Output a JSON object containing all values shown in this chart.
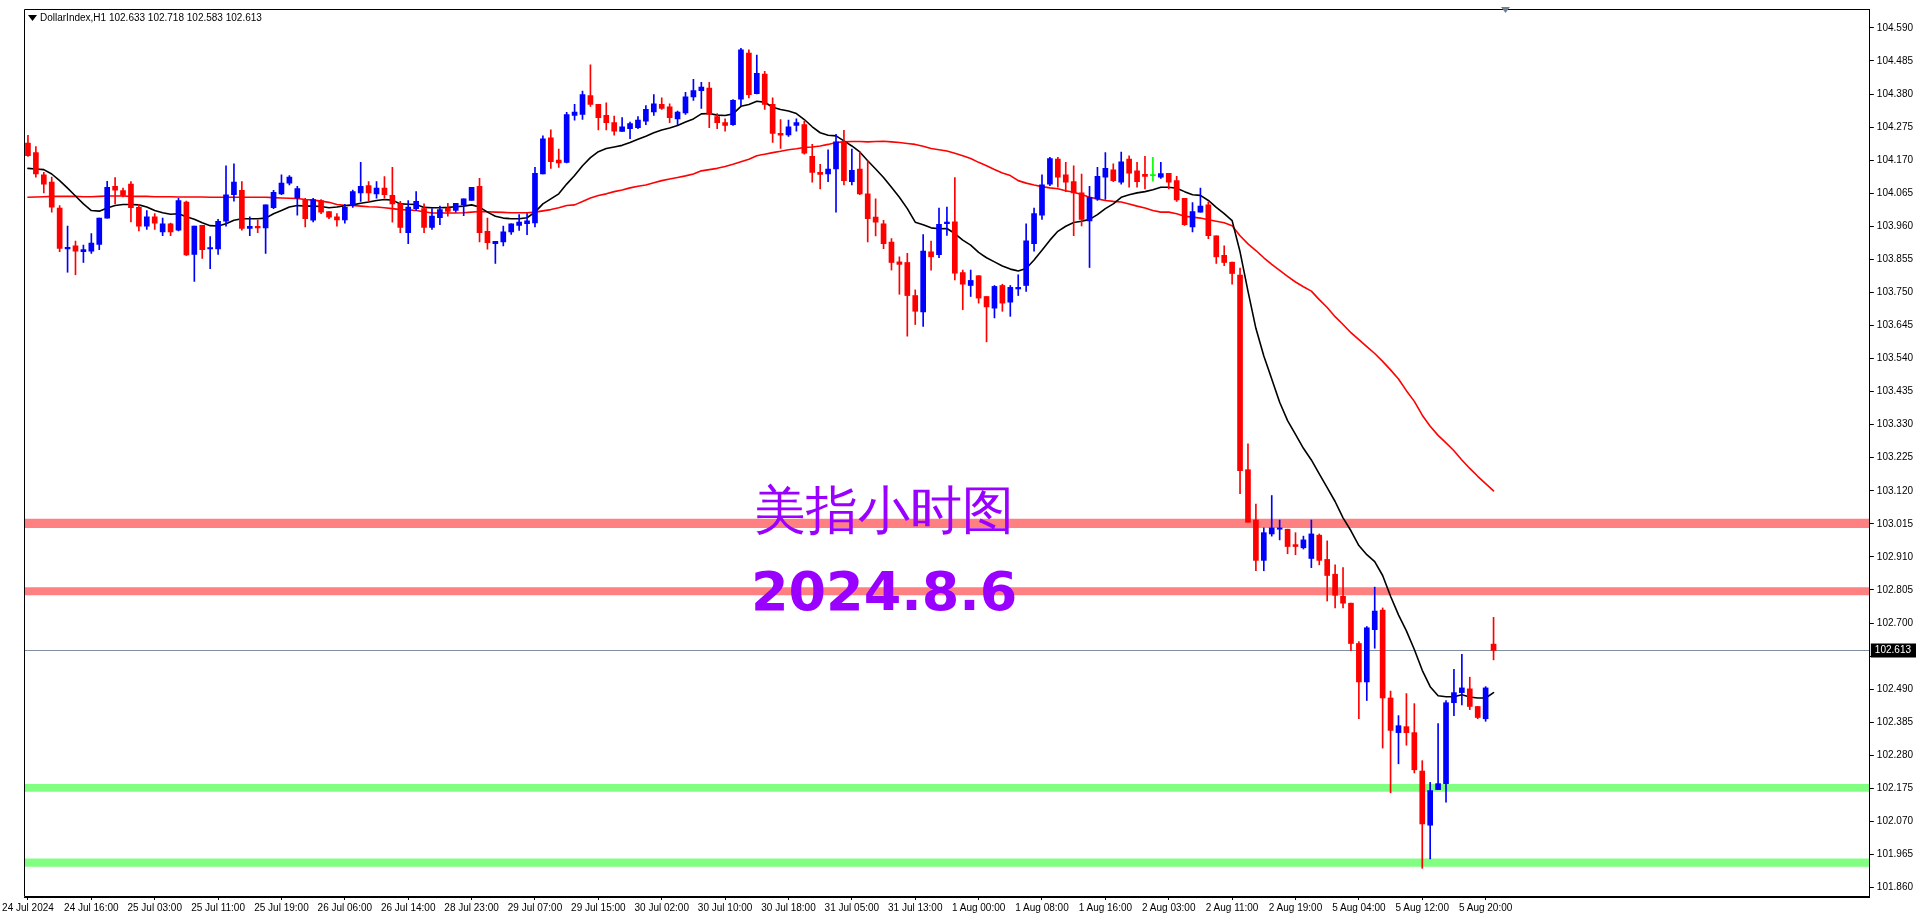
{
  "chart_data": {
    "type": "candlestick",
    "title": "DollarIndex,H1 102.633 102.718 102.583 102.613",
    "annotations": [
      "美指小时图",
      "2024.8.6"
    ],
    "categories": [
      "24 Jul 2024",
      null,
      null,
      null,
      null,
      null,
      null,
      null,
      "24 Jul 16:00",
      null,
      null,
      null,
      null,
      null,
      null,
      null,
      "25 Jul 03:00",
      null,
      null,
      null,
      null,
      null,
      null,
      null,
      "25 Jul 11:00",
      null,
      null,
      null,
      null,
      null,
      null,
      null,
      "25 Jul 19:00",
      null,
      null,
      null,
      null,
      null,
      null,
      null,
      "26 Jul 06:00",
      null,
      null,
      null,
      null,
      null,
      null,
      null,
      "26 Jul 14:00",
      null,
      null,
      null,
      null,
      null,
      null,
      null,
      "28 Jul 23:00",
      null,
      null,
      null,
      null,
      null,
      null,
      null,
      "29 Jul 07:00",
      null,
      null,
      null,
      null,
      null,
      null,
      null,
      "29 Jul 15:00",
      null,
      null,
      null,
      null,
      null,
      null,
      null,
      "30 Jul 02:00",
      null,
      null,
      null,
      null,
      null,
      null,
      null,
      "30 Jul 10:00",
      null,
      null,
      null,
      null,
      null,
      null,
      null,
      "30 Jul 18:00",
      null,
      null,
      null,
      null,
      null,
      null,
      null,
      "31 Jul 05:00",
      null,
      null,
      null,
      null,
      null,
      null,
      null,
      "31 Jul 13:00",
      null,
      null,
      null,
      null,
      null,
      null,
      null,
      "1 Aug 00:00",
      null,
      null,
      null,
      null,
      null,
      null,
      null,
      "1 Aug 08:00",
      null,
      null,
      null,
      null,
      null,
      null,
      null,
      "1 Aug 16:00",
      null,
      null,
      null,
      null,
      null,
      null,
      null,
      "2 Aug 03:00",
      null,
      null,
      null,
      null,
      null,
      null,
      null,
      "2 Aug 11:00",
      null,
      null,
      null,
      null,
      null,
      null,
      null,
      "2 Aug 19:00",
      null,
      null,
      null,
      null,
      null,
      null,
      null,
      "5 Aug 04:00",
      null,
      null,
      null,
      null,
      null,
      null,
      null,
      "5 Aug 12:00",
      null,
      null,
      null,
      null,
      null,
      null,
      null,
      "5 Aug 20:00",
      null,
      null,
      null,
      null,
      null,
      null,
      null,
      null,
      null,
      null,
      null,
      null,
      null,
      null,
      null,
      null,
      null,
      null,
      null,
      null,
      null,
      null,
      null,
      null,
      null,
      null,
      null,
      null,
      null,
      null,
      null,
      null,
      null,
      null,
      null,
      null,
      null,
      null,
      null,
      null,
      null,
      null,
      null,
      null,
      null,
      null,
      null,
      null
    ],
    "ohlc": [
      [
        104.224,
        104.249,
        104.182,
        104.184
      ],
      [
        104.194,
        104.213,
        104.116,
        104.126
      ],
      [
        104.123,
        104.131,
        104.066,
        104.094
      ],
      [
        104.1,
        104.116,
        104.005,
        104.021
      ],
      [
        104.018,
        104.026,
        103.879,
        103.89
      ],
      [
        103.888,
        103.961,
        103.814,
        103.893
      ],
      [
        103.898,
        103.913,
        103.806,
        103.881
      ],
      [
        103.879,
        103.9,
        103.845,
        103.886
      ],
      [
        103.881,
        103.937,
        103.874,
        103.907
      ],
      [
        103.902,
        103.986,
        103.886,
        103.986
      ],
      [
        103.986,
        104.103,
        103.986,
        104.084
      ],
      [
        104.087,
        104.115,
        104.031,
        104.075
      ],
      [
        104.073,
        104.081,
        104.053,
        104.058
      ],
      [
        104.094,
        104.102,
        103.974,
        104.019
      ],
      [
        104.02,
        104.03,
        103.945,
        103.96
      ],
      [
        103.96,
        104.01,
        103.95,
        103.99
      ],
      [
        103.99,
        104.0,
        103.95,
        103.97
      ],
      [
        103.942,
        103.986,
        103.93,
        103.968
      ],
      [
        103.968,
        103.97,
        103.93,
        103.942
      ],
      [
        103.948,
        104.049,
        103.945,
        104.042
      ],
      [
        104.037,
        104.04,
        103.867,
        103.869
      ],
      [
        103.871,
        103.961,
        103.785,
        103.961
      ],
      [
        103.963,
        103.963,
        103.858,
        103.886
      ],
      [
        103.888,
        103.927,
        103.825,
        103.892
      ],
      [
        103.888,
        103.982,
        103.871,
        103.976
      ],
      [
        103.976,
        104.152,
        103.96,
        104.06
      ],
      [
        104.06,
        104.158,
        104.04,
        104.1
      ],
      [
        104.074,
        104.102,
        103.948,
        103.953
      ],
      [
        103.953,
        103.99,
        103.93,
        103.96
      ],
      [
        103.96,
        103.98,
        103.94,
        103.955
      ],
      [
        103.955,
        104.028,
        103.874,
        104.028
      ],
      [
        104.019,
        104.074,
        104.016,
        104.068
      ],
      [
        104.063,
        104.123,
        104.06,
        104.097
      ],
      [
        104.097,
        104.121,
        104.091,
        104.116
      ],
      [
        104.05,
        104.087,
        103.995,
        104.08
      ],
      [
        104.045,
        104.049,
        103.958,
        103.984
      ],
      [
        103.979,
        104.049,
        103.974,
        104.045
      ],
      [
        104.042,
        104.045,
        104.0,
        104.005
      ],
      [
        104.007,
        104.007,
        103.984,
        103.989
      ],
      [
        103.99,
        104.0,
        103.96,
        103.98
      ],
      [
        103.98,
        104.03,
        103.97,
        104.02
      ],
      [
        104.026,
        104.075,
        104.02,
        104.07
      ],
      [
        104.066,
        104.163,
        104.039,
        104.087
      ],
      [
        104.089,
        104.102,
        104.039,
        104.066
      ],
      [
        104.063,
        104.102,
        104.049,
        104.081
      ],
      [
        104.081,
        104.118,
        104.049,
        104.06
      ],
      [
        104.058,
        104.147,
        103.973,
        104.031
      ],
      [
        104.031,
        104.039,
        103.94,
        103.956
      ],
      [
        103.94,
        104.042,
        103.905,
        104.021
      ],
      [
        104.016,
        104.07,
        104.01,
        104.039
      ],
      [
        104.016,
        104.031,
        103.94,
        103.956
      ],
      [
        103.956,
        104.016,
        103.95,
        103.992
      ],
      [
        103.987,
        104.024,
        103.965,
        104.013
      ],
      [
        104.018,
        104.033,
        103.992,
        104.007
      ],
      [
        104.01,
        104.033,
        104.005,
        104.033
      ],
      [
        104.028,
        104.047,
        103.994,
        104.047
      ],
      [
        104.042,
        104.084,
        104.042,
        104.084
      ],
      [
        104.087,
        104.112,
        103.91,
        103.94
      ],
      [
        103.944,
        103.986,
        103.887,
        103.908
      ],
      [
        103.905,
        103.912,
        103.842,
        103.912
      ],
      [
        103.91,
        103.961,
        103.898,
        103.942
      ],
      [
        103.942,
        103.968,
        103.934,
        103.968
      ],
      [
        103.963,
        103.997,
        103.947,
        103.973
      ],
      [
        103.968,
        104.0,
        103.933,
        103.977
      ],
      [
        103.971,
        104.147,
        103.958,
        104.128
      ],
      [
        104.126,
        104.247,
        104.126,
        104.238
      ],
      [
        104.241,
        104.266,
        104.144,
        104.165
      ],
      [
        104.17,
        104.205,
        104.147,
        104.161
      ],
      [
        104.163,
        104.322,
        104.161,
        104.315
      ],
      [
        104.312,
        104.347,
        104.297,
        104.323
      ],
      [
        104.315,
        104.389,
        104.299,
        104.378
      ],
      [
        104.375,
        104.473,
        104.341,
        104.347
      ],
      [
        104.347,
        104.347,
        104.266,
        104.305
      ],
      [
        104.312,
        104.352,
        104.266,
        104.289
      ],
      [
        104.289,
        104.31,
        104.249,
        104.262
      ],
      [
        104.261,
        104.305,
        104.261,
        104.276
      ],
      [
        104.27,
        104.291,
        104.238,
        104.286
      ],
      [
        104.273,
        104.308,
        104.27,
        104.297
      ],
      [
        104.294,
        104.343,
        104.283,
        104.331
      ],
      [
        104.323,
        104.378,
        104.312,
        104.349
      ],
      [
        104.347,
        104.368,
        104.331,
        104.334
      ],
      [
        104.339,
        104.349,
        104.289,
        104.305
      ],
      [
        104.301,
        104.326,
        104.283,
        104.323
      ],
      [
        104.32,
        104.385,
        104.315,
        104.371
      ],
      [
        104.371,
        104.427,
        104.36,
        104.391
      ],
      [
        104.391,
        104.417,
        104.334,
        104.402
      ],
      [
        104.399,
        104.417,
        104.273,
        104.315
      ],
      [
        104.308,
        104.318,
        104.27,
        104.289
      ],
      [
        104.289,
        104.301,
        104.262,
        104.28
      ],
      [
        104.283,
        104.362,
        104.28,
        104.36
      ],
      [
        104.364,
        104.525,
        104.343,
        104.52
      ],
      [
        104.51,
        104.52,
        104.368,
        104.378
      ],
      [
        104.381,
        104.504,
        104.38,
        104.446
      ],
      [
        104.443,
        104.452,
        104.331,
        104.347
      ],
      [
        104.347,
        104.368,
        104.226,
        104.255
      ],
      [
        104.255,
        104.299,
        104.207,
        104.249
      ],
      [
        104.25,
        104.297,
        104.245,
        104.276
      ],
      [
        104.28,
        104.301,
        104.262,
        104.289
      ],
      [
        104.283,
        104.294,
        104.189,
        104.192
      ],
      [
        104.182,
        104.22,
        104.1,
        104.131
      ],
      [
        104.131,
        104.157,
        104.079,
        104.125
      ],
      [
        104.126,
        104.203,
        104.102,
        104.142
      ],
      [
        104.142,
        104.252,
        104.005,
        104.228
      ],
      [
        104.228,
        104.265,
        104.091,
        104.105
      ],
      [
        104.102,
        104.205,
        104.091,
        104.138
      ],
      [
        104.142,
        104.196,
        104.06,
        104.063
      ],
      [
        104.063,
        104.168,
        103.91,
        103.984
      ],
      [
        103.989,
        104.047,
        103.929,
        103.973
      ],
      [
        103.968,
        103.979,
        103.889,
        103.905
      ],
      [
        103.91,
        103.921,
        103.821,
        103.845
      ],
      [
        103.847,
        103.863,
        103.744,
        103.839
      ],
      [
        103.845,
        103.874,
        103.611,
        103.74
      ],
      [
        103.74,
        103.758,
        103.648,
        103.69
      ],
      [
        103.688,
        103.934,
        103.642,
        103.881
      ],
      [
        103.879,
        103.913,
        103.821,
        103.863
      ],
      [
        103.87,
        104.018,
        103.86,
        103.966
      ],
      [
        103.968,
        104.021,
        103.931,
        103.973
      ],
      [
        103.974,
        104.115,
        103.79,
        103.811
      ],
      [
        103.813,
        103.821,
        103.695,
        103.776
      ],
      [
        103.772,
        103.821,
        103.737,
        103.788
      ],
      [
        103.803,
        103.803,
        103.716,
        103.732
      ],
      [
        103.737,
        103.737,
        103.593,
        103.704
      ],
      [
        103.7,
        103.772,
        103.669,
        103.769
      ],
      [
        103.772,
        103.776,
        103.69,
        103.716
      ],
      [
        103.719,
        103.772,
        103.674,
        103.766
      ],
      [
        103.761,
        103.806,
        103.74,
        103.766
      ],
      [
        103.772,
        103.968,
        103.753,
        103.914
      ],
      [
        103.905,
        104.018,
        103.881,
        104.0
      ],
      [
        103.995,
        104.123,
        103.982,
        104.092
      ],
      [
        104.094,
        104.179,
        104.089,
        104.175
      ],
      [
        104.173,
        104.179,
        104.084,
        104.116
      ],
      [
        104.123,
        104.163,
        104.07,
        104.1
      ],
      [
        104.102,
        104.152,
        103.93,
        104.066
      ],
      [
        104.066,
        104.126,
        103.961,
        103.982
      ],
      [
        103.977,
        104.087,
        103.829,
        104.052
      ],
      [
        104.047,
        104.147,
        104.042,
        104.119
      ],
      [
        104.116,
        104.194,
        104.045,
        104.144
      ],
      [
        104.139,
        104.158,
        104.102,
        104.105
      ],
      [
        104.1,
        104.196,
        104.094,
        104.165
      ],
      [
        104.173,
        104.184,
        104.084,
        104.129
      ],
      [
        104.136,
        104.163,
        104.084,
        104.102
      ],
      [
        104.125,
        104.182,
        104.079,
        104.118
      ],
      [
        104.121,
        104.179,
        104.103,
        104.121
      ],
      [
        104.116,
        104.163,
        104.112,
        104.127
      ],
      [
        104.128,
        104.128,
        104.079,
        104.1
      ],
      [
        104.105,
        104.119,
        104.039,
        104.044
      ],
      [
        104.049,
        104.049,
        103.963,
        103.965
      ],
      [
        103.958,
        104.035,
        103.942,
        104.007
      ],
      [
        104.005,
        104.081,
        104.005,
        104.024
      ],
      [
        104.028,
        104.037,
        103.921,
        103.93
      ],
      [
        103.93,
        103.93,
        103.842,
        103.863
      ],
      [
        103.868,
        103.898,
        103.835,
        103.845
      ],
      [
        103.846,
        103.846,
        103.776,
        103.81
      ],
      [
        103.805,
        103.827,
        103.111,
        103.184
      ],
      [
        103.187,
        103.269,
        103.02,
        103.02
      ],
      [
        103.027,
        103.078,
        102.866,
        102.899
      ],
      [
        102.899,
        103.002,
        102.866,
        102.987
      ],
      [
        102.983,
        103.105,
        102.976,
        103.002
      ],
      [
        102.998,
        103.027,
        102.964,
        103.002
      ],
      [
        102.998,
        102.998,
        102.92,
        102.943
      ],
      [
        102.949,
        102.987,
        102.917,
        102.943
      ],
      [
        102.939,
        102.976,
        102.935,
        102.964
      ],
      [
        102.905,
        103.027,
        102.876,
        102.983
      ],
      [
        102.979,
        102.983,
        102.885,
        102.899
      ],
      [
        102.902,
        102.961,
        102.77,
        102.851
      ],
      [
        102.855,
        102.885,
        102.748,
        102.788
      ],
      [
        102.785,
        102.876,
        102.748,
        102.763
      ],
      [
        102.763,
        102.763,
        102.612,
        102.635
      ],
      [
        102.635,
        102.641,
        102.396,
        102.513
      ],
      [
        102.513,
        102.689,
        102.454,
        102.685
      ],
      [
        102.679,
        102.814,
        102.62,
        102.738
      ],
      [
        102.741,
        102.748,
        102.303,
        102.462
      ],
      [
        102.462,
        102.484,
        102.161,
        102.359
      ],
      [
        102.352,
        102.406,
        102.253,
        102.374
      ],
      [
        102.371,
        102.476,
        102.312,
        102.352
      ],
      [
        102.352,
        102.444,
        102.224,
        102.234
      ],
      [
        102.23,
        102.263,
        101.921,
        102.062
      ],
      [
        102.058,
        102.194,
        101.951,
        102.168
      ],
      [
        102.171,
        102.381,
        102.171,
        102.19
      ],
      [
        102.19,
        102.454,
        102.131,
        102.447
      ],
      [
        102.447,
        102.553,
        102.406,
        102.479
      ],
      [
        102.479,
        102.601,
        102.44,
        102.494
      ],
      [
        102.491,
        102.528,
        102.425,
        102.435
      ],
      [
        102.435,
        102.435,
        102.396,
        102.4
      ],
      [
        102.396,
        102.498,
        102.388,
        102.494
      ],
      [
        102.633,
        102.718,
        102.583,
        102.613
      ],
      null,
      null,
      null,
      null,
      null,
      null,
      null,
      null,
      null,
      null,
      null,
      null,
      null,
      null,
      null,
      null,
      null,
      null,
      null,
      null,
      null,
      null,
      null,
      null,
      null,
      null,
      null,
      null,
      null,
      null,
      null,
      null,
      null,
      null,
      null,
      null,
      null,
      null,
      null,
      null,
      null,
      null,
      null,
      null,
      null,
      null,
      null
    ],
    "colors": [
      "#ff0000",
      "#ff0000",
      "#ff0000",
      "#ff0000",
      "#ff0000",
      "#0000ff",
      "#ff0000",
      "#0000ff",
      "#0000ff",
      "#0000ff",
      "#0000ff",
      "#ff0000",
      "#ff0000",
      "#ff0000",
      "#ff0000",
      "#0000ff",
      "#ff0000",
      "#0000ff",
      "#ff0000",
      "#0000ff",
      "#ff0000",
      "#0000ff",
      "#ff0000",
      "#0000ff",
      "#0000ff",
      "#0000ff",
      "#0000ff",
      "#ff0000",
      "#0000ff",
      "#ff0000",
      "#0000ff",
      "#0000ff",
      "#0000ff",
      "#0000ff",
      "#0000ff",
      "#ff0000",
      "#0000ff",
      "#ff0000",
      "#ff0000",
      "#ff0000",
      "#0000ff",
      "#0000ff",
      "#0000ff",
      "#ff0000",
      "#0000ff",
      "#ff0000",
      "#ff0000",
      "#ff0000",
      "#0000ff",
      "#0000ff",
      "#ff0000",
      "#0000ff",
      "#0000ff",
      "#ff0000",
      "#0000ff",
      "#0000ff",
      "#0000ff",
      "#ff0000",
      "#ff0000",
      "#0000ff",
      "#0000ff",
      "#0000ff",
      "#0000ff",
      "#0000ff",
      "#0000ff",
      "#0000ff",
      "#ff0000",
      "#ff0000",
      "#0000ff",
      "#0000ff",
      "#0000ff",
      "#ff0000",
      "#ff0000",
      "#ff0000",
      "#ff0000",
      "#0000ff",
      "#0000ff",
      "#0000ff",
      "#0000ff",
      "#0000ff",
      "#ff0000",
      "#ff0000",
      "#0000ff",
      "#0000ff",
      "#0000ff",
      "#0000ff",
      "#ff0000",
      "#ff0000",
      "#ff0000",
      "#0000ff",
      "#0000ff",
      "#ff0000",
      "#0000ff",
      "#ff0000",
      "#ff0000",
      "#ff0000",
      "#0000ff",
      "#0000ff",
      "#ff0000",
      "#ff0000",
      "#ff0000",
      "#0000ff",
      "#0000ff",
      "#ff0000",
      "#0000ff",
      "#ff0000",
      "#ff0000",
      "#ff0000",
      "#ff0000",
      "#ff0000",
      "#ff0000",
      "#ff0000",
      "#ff0000",
      "#0000ff",
      "#ff0000",
      "#0000ff",
      "#0000ff",
      "#ff0000",
      "#ff0000",
      "#0000ff",
      "#ff0000",
      "#ff0000",
      "#0000ff",
      "#ff0000",
      "#0000ff",
      "#0000ff",
      "#0000ff",
      "#0000ff",
      "#0000ff",
      "#0000ff",
      "#ff0000",
      "#ff0000",
      "#ff0000",
      "#ff0000",
      "#0000ff",
      "#0000ff",
      "#0000ff",
      "#ff0000",
      "#0000ff",
      "#ff0000",
      "#ff0000",
      "#ff0000",
      "#00ff00",
      "#0000ff",
      "#ff0000",
      "#ff0000",
      "#ff0000",
      "#0000ff",
      "#0000ff",
      "#ff0000",
      "#ff0000",
      "#ff0000",
      "#ff0000",
      "#ff0000",
      "#ff0000",
      "#ff0000",
      "#0000ff",
      "#0000ff",
      "#0000ff",
      "#ff0000",
      "#ff0000",
      "#0000ff",
      "#0000ff",
      "#ff0000",
      "#ff0000",
      "#ff0000",
      "#ff0000",
      "#ff0000",
      "#ff0000",
      "#0000ff",
      "#0000ff",
      "#ff0000",
      "#ff0000",
      "#0000ff",
      "#ff0000",
      "#ff0000",
      "#ff0000",
      "#0000ff",
      "#0000ff",
      "#0000ff",
      "#0000ff",
      "#0000ff",
      "#ff0000",
      "#ff0000",
      "#0000ff",
      "#ff0000",
      null,
      null,
      null,
      null,
      null,
      null,
      null,
      null,
      null,
      null,
      null,
      null,
      null,
      null,
      null,
      null,
      null,
      null,
      null,
      null,
      null,
      null,
      null,
      null,
      null,
      null,
      null,
      null,
      null,
      null,
      null,
      null,
      null,
      null,
      null,
      null,
      null,
      null,
      null,
      null,
      null,
      null,
      null,
      null,
      null,
      null,
      null
    ],
    "series": [
      {
        "type": "line",
        "color": "#000000",
        "values": [
          104.144,
          104.142,
          104.14,
          104.126,
          104.105,
          104.081,
          104.056,
          104.031,
          104.01,
          104.008,
          104.018,
          104.026,
          104.029,
          104.029,
          104.028,
          104.021,
          104.01,
          104.003,
          103.998,
          104.0,
          103.99,
          103.982,
          103.971,
          103.962,
          103.961,
          103.968,
          103.979,
          103.984,
          103.984,
          103.984,
          103.986,
          104.0,
          104.01,
          104.021,
          104.026,
          104.024,
          104.024,
          104.023,
          104.019,
          104.021,
          104.025,
          104.028,
          104.033,
          104.037,
          104.042,
          104.045,
          104.043,
          104.031,
          104.03,
          104.029,
          104.02,
          104.019,
          104.019,
          104.02,
          104.022,
          104.024,
          104.028,
          104.021,
          104.005,
          103.992,
          103.986,
          103.984,
          103.984,
          103.987,
          104.005,
          104.031,
          104.047,
          104.063,
          104.094,
          104.121,
          104.152,
          104.178,
          104.197,
          104.207,
          104.212,
          104.217,
          104.226,
          104.236,
          104.246,
          104.257,
          104.266,
          104.272,
          104.28,
          104.291,
          104.301,
          104.317,
          104.318,
          104.313,
          104.312,
          104.317,
          104.341,
          104.347,
          104.357,
          104.354,
          104.338,
          104.331,
          104.326,
          104.318,
          104.299,
          104.276,
          104.257,
          104.249,
          104.247,
          104.231,
          104.215,
          104.196,
          104.168,
          104.142,
          104.115,
          104.084,
          104.052,
          104.016,
          103.973,
          103.965,
          103.955,
          103.952,
          103.953,
          103.937,
          103.916,
          103.9,
          103.877,
          103.86,
          103.847,
          103.834,
          103.824,
          103.818,
          103.826,
          103.853,
          103.884,
          103.916,
          103.944,
          103.96,
          103.972,
          103.976,
          103.982,
          103.997,
          104.016,
          104.031,
          104.052,
          104.06,
          104.066,
          104.07,
          104.076,
          104.084,
          104.084,
          104.081,
          104.07,
          104.06,
          104.058,
          104.042,
          104.02,
          104.0,
          103.978,
          103.879,
          103.754,
          103.636,
          103.548,
          103.475,
          103.401,
          103.343,
          103.299,
          103.255,
          103.218,
          103.174,
          103.13,
          103.086,
          103.034,
          102.993,
          102.946,
          102.917,
          102.895,
          102.851,
          102.785,
          102.726,
          102.675,
          102.616,
          102.55,
          102.498,
          102.469,
          102.466,
          102.466,
          102.472,
          102.465,
          102.462,
          102.462,
          102.479,
          null,
          null,
          null,
          null,
          null,
          null,
          null,
          null,
          null,
          null,
          null,
          null,
          null,
          null,
          null,
          null,
          null,
          null,
          null,
          null,
          null,
          null,
          null,
          null,
          null,
          null,
          null,
          null,
          null,
          null,
          null,
          null,
          null,
          null,
          null,
          null,
          null,
          null,
          null,
          null,
          null,
          null,
          null,
          null,
          null,
          null,
          null
        ]
      },
      {
        "type": "line",
        "color": "#ff0000",
        "values": [
          104.052,
          104.053,
          104.054,
          104.055,
          104.055,
          104.055,
          104.055,
          104.054,
          104.054,
          104.055,
          104.056,
          104.056,
          104.056,
          104.055,
          104.055,
          104.055,
          104.054,
          104.054,
          104.054,
          104.053,
          104.053,
          104.053,
          104.053,
          104.052,
          104.052,
          104.052,
          104.052,
          104.052,
          104.052,
          104.052,
          104.052,
          104.051,
          104.05,
          104.049,
          104.048,
          104.045,
          104.043,
          104.04,
          104.036,
          104.029,
          104.027,
          104.026,
          104.024,
          104.022,
          104.021,
          104.019,
          104.016,
          104.013,
          104.012,
          104.01,
          104.006,
          104.002,
          104.002,
          104.002,
          104.002,
          104.003,
          104.005,
          104.007,
          104.006,
          104.005,
          104.004,
          104.003,
          104.003,
          104.003,
          104.005,
          104.009,
          104.013,
          104.019,
          104.026,
          104.028,
          104.039,
          104.05,
          104.058,
          104.063,
          104.07,
          104.075,
          104.082,
          104.087,
          104.091,
          104.098,
          104.105,
          104.11,
          104.115,
          104.12,
          104.126,
          104.136,
          104.14,
          104.144,
          104.15,
          104.157,
          104.165,
          104.173,
          104.184,
          104.189,
          104.194,
          104.198,
          104.203,
          104.206,
          104.21,
          104.212,
          104.215,
          104.22,
          104.226,
          104.228,
          104.229,
          104.229,
          104.228,
          104.229,
          104.23,
          104.228,
          104.226,
          104.223,
          104.22,
          104.214,
          104.207,
          104.203,
          104.199,
          104.192,
          104.184,
          104.175,
          104.163,
          104.152,
          104.14,
          104.129,
          104.121,
          104.105,
          104.097,
          104.091,
          104.086,
          104.082,
          104.079,
          104.073,
          104.068,
          104.061,
          104.052,
          104.047,
          104.042,
          104.039,
          104.037,
          104.031,
          104.024,
          104.018,
          104.01,
          104.005,
          104.005,
          104.0,
          103.992,
          103.989,
          103.986,
          103.981,
          103.976,
          103.971,
          103.962,
          103.93,
          103.904,
          103.883,
          103.86,
          103.839,
          103.82,
          103.801,
          103.783,
          103.768,
          103.754,
          103.727,
          103.702,
          103.673,
          103.648,
          103.622,
          103.6,
          103.578,
          103.556,
          103.531,
          103.504,
          103.475,
          103.438,
          103.404,
          103.36,
          103.325,
          103.296,
          103.272,
          103.247,
          103.218,
          103.191,
          103.166,
          103.143,
          103.12,
          null,
          null,
          null,
          null,
          null,
          null,
          null,
          null,
          null,
          null,
          null,
          null,
          null,
          null,
          null,
          null,
          null,
          null,
          null,
          null,
          null,
          null,
          null,
          null,
          null,
          null,
          null,
          null,
          null,
          null,
          null,
          null,
          null,
          null,
          null,
          null,
          null,
          null,
          null,
          null,
          null,
          null,
          null,
          null,
          null,
          null,
          null
        ]
      }
    ],
    "ylim": [
      101.83,
      104.65
    ],
    "yticks": [
      {
        "value": 101.86,
        "label": "101.860"
      },
      {
        "value": 101.965,
        "label": "101.965"
      },
      {
        "value": 102.07,
        "label": "102.070"
      },
      {
        "value": 102.175,
        "label": "102.175"
      },
      {
        "value": 102.28,
        "label": "102.280"
      },
      {
        "value": 102.385,
        "label": "102.385"
      },
      {
        "value": 102.49,
        "label": "102.490"
      },
      {
        "value": 102.595,
        "label": null
      },
      {
        "value": 102.7,
        "label": "102.700"
      },
      {
        "value": 102.805,
        "label": "102.805"
      },
      {
        "value": 102.91,
        "label": "102.910"
      },
      {
        "value": 103.015,
        "label": "103.015"
      },
      {
        "value": 103.12,
        "label": "103.120"
      },
      {
        "value": 103.225,
        "label": "103.225"
      },
      {
        "value": 103.33,
        "label": "103.330"
      },
      {
        "value": 103.435,
        "label": "103.435"
      },
      {
        "value": 103.54,
        "label": "103.540"
      },
      {
        "value": 103.645,
        "label": "103.645"
      },
      {
        "value": 103.75,
        "label": "103.750"
      },
      {
        "value": 103.855,
        "label": "103.855"
      },
      {
        "value": 103.96,
        "label": "103.960"
      },
      {
        "value": 104.065,
        "label": "104.065"
      },
      {
        "value": 104.17,
        "label": "104.170"
      },
      {
        "value": 104.275,
        "label": "104.275"
      },
      {
        "value": 104.38,
        "label": "104.380"
      },
      {
        "value": 104.485,
        "label": "104.485"
      },
      {
        "value": 104.59,
        "label": "104.590"
      }
    ],
    "bands": [
      {
        "axis": "y",
        "from": 103.002,
        "to": 103.031,
        "color": "#ff8080"
      },
      {
        "axis": "y",
        "from": 102.788,
        "to": 102.814,
        "color": "#ff8080"
      },
      {
        "axis": "y",
        "from": 102.164,
        "to": 102.189,
        "color": "#80ff80"
      },
      {
        "axis": "y",
        "from": 101.926,
        "to": 101.952,
        "color": "#80ff80"
      }
    ],
    "ref_lines": [
      {
        "axis": "y",
        "value": 102.613,
        "label": "102.613",
        "color": "#8090a0"
      }
    ]
  }
}
